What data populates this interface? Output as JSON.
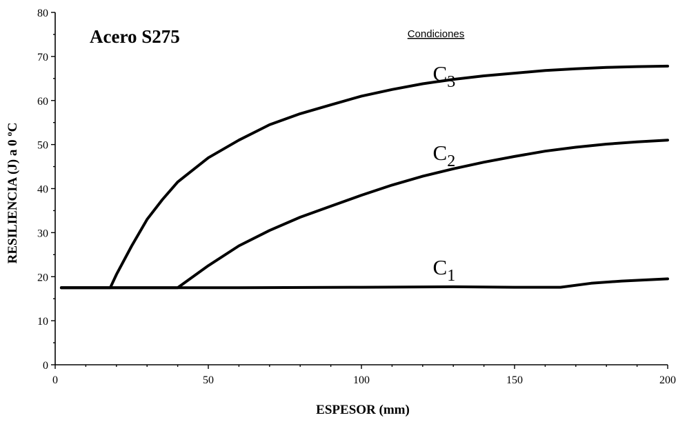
{
  "chart_data": {
    "type": "line",
    "title": "Acero S275",
    "legend_title": "Condiciones",
    "xlabel": "ESPESOR (mm)",
    "ylabel": "RESILIENCIA (J) a 0 ºC",
    "xlim": [
      0,
      200
    ],
    "ylim": [
      0,
      80
    ],
    "x_ticks": [
      0,
      50,
      100,
      150,
      200
    ],
    "y_ticks": [
      0,
      10,
      20,
      30,
      40,
      50,
      60,
      70,
      80
    ],
    "grid": false,
    "series": [
      {
        "name": "C",
        "sub": "3",
        "label_at": [
          127,
          64.5
        ],
        "points": [
          [
            2,
            17.5
          ],
          [
            18,
            17.5
          ],
          [
            20,
            20.5
          ],
          [
            25,
            27
          ],
          [
            30,
            33
          ],
          [
            35,
            37.5
          ],
          [
            40,
            41.5
          ],
          [
            50,
            47
          ],
          [
            60,
            51
          ],
          [
            70,
            54.5
          ],
          [
            80,
            57
          ],
          [
            90,
            59
          ],
          [
            100,
            61
          ],
          [
            110,
            62.5
          ],
          [
            120,
            63.8
          ],
          [
            130,
            64.8
          ],
          [
            140,
            65.6
          ],
          [
            150,
            66.2
          ],
          [
            160,
            66.8
          ],
          [
            170,
            67.2
          ],
          [
            180,
            67.5
          ],
          [
            190,
            67.7
          ],
          [
            200,
            67.8
          ]
        ]
      },
      {
        "name": "C",
        "sub": "2",
        "label_at": [
          127,
          46.5
        ],
        "points": [
          [
            2,
            17.5
          ],
          [
            40,
            17.5
          ],
          [
            45,
            20
          ],
          [
            50,
            22.5
          ],
          [
            60,
            27
          ],
          [
            70,
            30.5
          ],
          [
            80,
            33.5
          ],
          [
            90,
            36
          ],
          [
            100,
            38.5
          ],
          [
            110,
            40.8
          ],
          [
            120,
            42.8
          ],
          [
            130,
            44.5
          ],
          [
            140,
            46
          ],
          [
            150,
            47.3
          ],
          [
            160,
            48.5
          ],
          [
            170,
            49.4
          ],
          [
            180,
            50.1
          ],
          [
            190,
            50.6
          ],
          [
            200,
            51
          ]
        ]
      },
      {
        "name": "C",
        "sub": "1",
        "label_at": [
          127,
          20.5
        ],
        "points": [
          [
            2,
            17.5
          ],
          [
            20,
            17.5
          ],
          [
            60,
            17.5
          ],
          [
            100,
            17.6
          ],
          [
            130,
            17.7
          ],
          [
            150,
            17.6
          ],
          [
            165,
            17.6
          ],
          [
            175,
            18.5
          ],
          [
            185,
            19
          ],
          [
            200,
            19.5
          ]
        ]
      }
    ]
  }
}
